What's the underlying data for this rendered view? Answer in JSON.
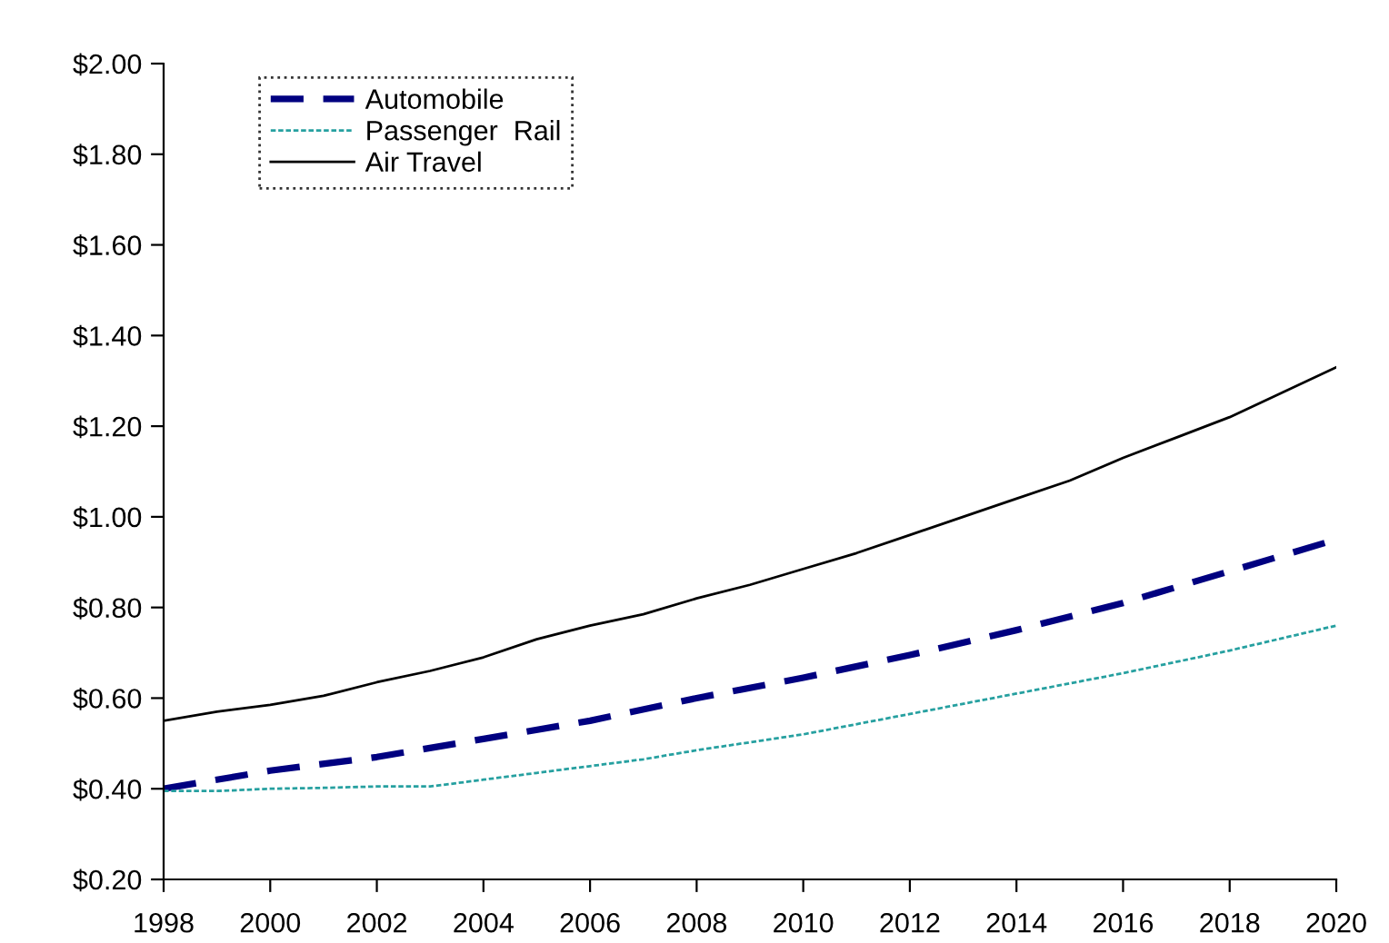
{
  "chart_data": {
    "type": "line",
    "series": [
      {
        "name": "Automobile",
        "color": "#000080",
        "line_style": "dashed",
        "x": [
          1998,
          2000,
          2002,
          2004,
          2006,
          2008,
          2010,
          2012,
          2014,
          2016,
          2018,
          2020
        ],
        "values": [
          0.4,
          0.44,
          0.47,
          0.51,
          0.55,
          0.6,
          0.645,
          0.695,
          0.75,
          0.81,
          0.88,
          0.95
        ]
      },
      {
        "name": "Passenger  Rail",
        "color": "#26a0a0",
        "line_style": "dotted",
        "x": [
          1998,
          1999,
          2000,
          2001,
          2002,
          2003,
          2004,
          2005,
          2006,
          2007,
          2008,
          2010,
          2012,
          2014,
          2016,
          2018,
          2020
        ],
        "values": [
          0.395,
          0.395,
          0.4,
          0.402,
          0.405,
          0.405,
          0.42,
          0.435,
          0.45,
          0.465,
          0.485,
          0.52,
          0.565,
          0.61,
          0.655,
          0.705,
          0.76
        ]
      },
      {
        "name": "Air Travel",
        "color": "#000000",
        "line_style": "solid",
        "x": [
          1998,
          1999,
          2000,
          2001,
          2002,
          2003,
          2004,
          2005,
          2006,
          2007,
          2008,
          2009,
          2010,
          2011,
          2012,
          2013,
          2014,
          2015,
          2016,
          2017,
          2018,
          2019,
          2020
        ],
        "values": [
          0.55,
          0.57,
          0.585,
          0.605,
          0.635,
          0.66,
          0.69,
          0.73,
          0.76,
          0.785,
          0.82,
          0.85,
          0.885,
          0.92,
          0.96,
          1.0,
          1.04,
          1.08,
          1.13,
          1.175,
          1.22,
          1.275,
          1.33
        ]
      }
    ],
    "xlim": [
      1998,
      2020
    ],
    "xticks": [
      1998,
      2000,
      2002,
      2004,
      2006,
      2008,
      2010,
      2012,
      2014,
      2016,
      2018,
      2020
    ],
    "ylim": [
      0.2,
      2.0
    ],
    "yticks": [
      {
        "value": 0.2,
        "label": "$0.20"
      },
      {
        "value": 0.4,
        "label": "$0.40"
      },
      {
        "value": 0.6,
        "label": "$0.60"
      },
      {
        "value": 0.8,
        "label": "$0.80"
      },
      {
        "value": 1.0,
        "label": "$1.00"
      },
      {
        "value": 1.2,
        "label": "$1.20"
      },
      {
        "value": 1.4,
        "label": "$1.40"
      },
      {
        "value": 1.6,
        "label": "$1.60"
      },
      {
        "value": 1.8,
        "label": "$1.80"
      },
      {
        "value": 2.0,
        "label": "$2.00"
      }
    ],
    "legend": "top left",
    "grid": false,
    "marker": "none"
  }
}
